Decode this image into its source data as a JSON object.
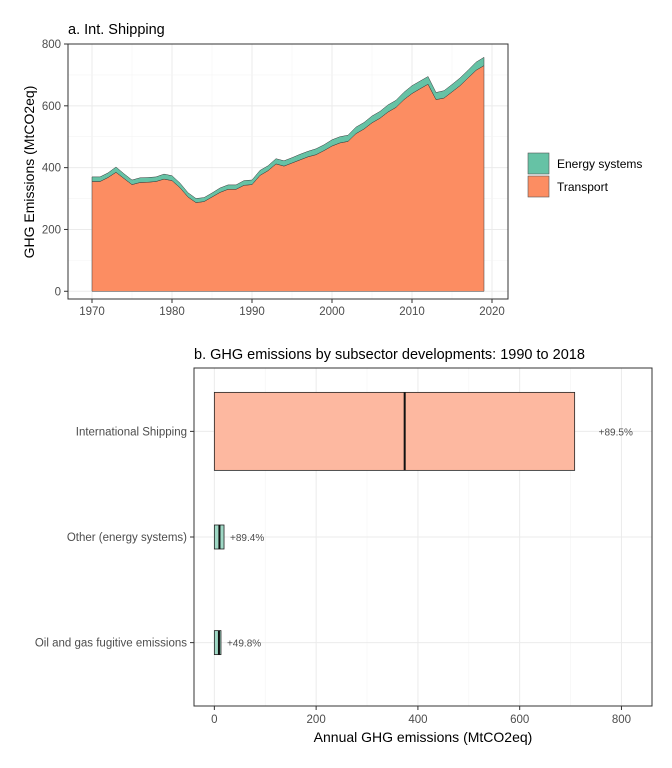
{
  "chart_data": [
    {
      "type": "area",
      "title": "a. Int. Shipping",
      "xlabel": "",
      "ylabel": "GHG Emissions (MtCO2eq)",
      "xlim": [
        1967,
        2022
      ],
      "ylim": [
        -25,
        800
      ],
      "x_ticks": [
        "1970",
        "1980",
        "1990",
        "2000",
        "2010",
        "2020"
      ],
      "y_ticks": [
        "0",
        "200",
        "400",
        "600",
        "800"
      ],
      "grid": true,
      "stacked": true,
      "legend_position": "right",
      "x": [
        1970,
        1971,
        1972,
        1973,
        1974,
        1975,
        1976,
        1977,
        1978,
        1979,
        1980,
        1981,
        1982,
        1983,
        1984,
        1985,
        1986,
        1987,
        1988,
        1989,
        1990,
        1991,
        1992,
        1993,
        1994,
        1995,
        1996,
        1997,
        1998,
        1999,
        2000,
        2001,
        2002,
        2003,
        2004,
        2005,
        2006,
        2007,
        2008,
        2009,
        2010,
        2011,
        2012,
        2013,
        2014,
        2015,
        2016,
        2017,
        2018,
        2019
      ],
      "series": [
        {
          "name": "Transport",
          "color": "#fc8d62",
          "values": [
            355,
            355,
            368,
            385,
            365,
            345,
            352,
            353,
            355,
            363,
            358,
            335,
            305,
            287,
            290,
            305,
            320,
            330,
            330,
            343,
            345,
            375,
            390,
            412,
            405,
            415,
            425,
            435,
            442,
            455,
            470,
            480,
            485,
            510,
            525,
            545,
            560,
            580,
            595,
            620,
            640,
            655,
            670,
            620,
            625,
            645,
            665,
            690,
            715,
            730
          ]
        },
        {
          "name": "Energy systems",
          "color": "#66c2a5",
          "values": [
            15,
            15,
            15,
            17,
            15,
            15,
            15,
            15,
            15,
            16,
            16,
            15,
            14,
            13,
            13,
            13,
            14,
            14,
            14,
            15,
            15,
            16,
            16,
            17,
            17,
            17,
            18,
            18,
            19,
            19,
            20,
            20,
            20,
            21,
            21,
            22,
            22,
            23,
            23,
            24,
            25,
            25,
            25,
            23,
            24,
            24,
            25,
            25,
            26,
            27
          ]
        }
      ]
    },
    {
      "type": "bar",
      "orientation": "horizontal",
      "title": "b. GHG emissions by subsector developments: 1990 to 2018",
      "xlabel": "Annual GHG emissions (MtCO2eq)",
      "ylabel": "",
      "xlim": [
        -40,
        860
      ],
      "x_ticks": [
        "0",
        "200",
        "400",
        "600",
        "800"
      ],
      "grid": true,
      "categories": [
        "International Shipping",
        "Other (energy systems)",
        "Oil and gas fugitive emissions"
      ],
      "values": [
        708,
        19,
        13
      ],
      "values_1990": [
        374,
        10,
        9
      ],
      "colors": [
        "#fdb8a0",
        "#9fd8c5",
        "#9fd8c5"
      ],
      "labels": [
        "+89.5%",
        "+89.4%",
        "+49.8%"
      ]
    }
  ]
}
